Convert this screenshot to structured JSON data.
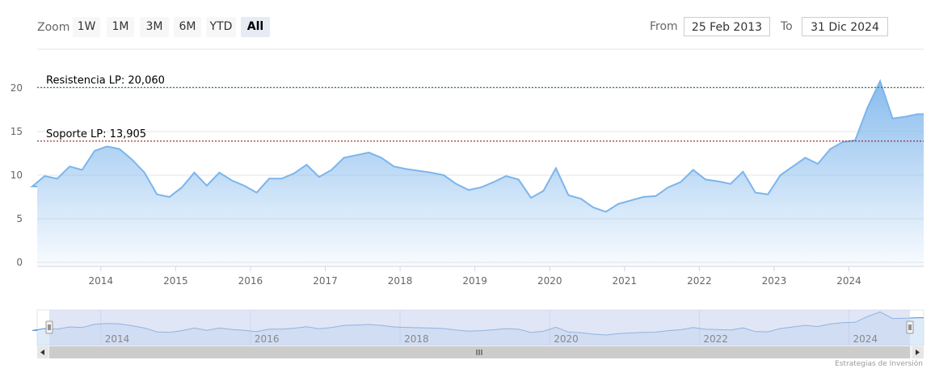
{
  "toolbar": {
    "zoom_label": "Zoom",
    "buttons": [
      "1W",
      "1M",
      "3M",
      "6M",
      "YTD",
      "All"
    ],
    "active": "All",
    "from_label": "From",
    "from_value": "25 Feb 2013",
    "to_label": "To",
    "to_value": "31 Dic 2024"
  },
  "credit": "Estrategias de Inversión",
  "colors": {
    "line": "#7cb5ec",
    "fill_top": "#7cb5ec",
    "resistance": "#2e8b2e",
    "support": "#9a1b1b",
    "navigator_mask": "#c6d2ec"
  },
  "chart_data": {
    "type": "area",
    "title": "",
    "xlabel": "",
    "ylabel": "",
    "ylim": [
      0,
      20
    ],
    "yticks": [
      0,
      5,
      10,
      15,
      20
    ],
    "xticks": [
      "2014",
      "2015",
      "2016",
      "2017",
      "2018",
      "2019",
      "2020",
      "2021",
      "2022",
      "2023",
      "2024"
    ],
    "navigator_ticks": [
      "2014",
      "2016",
      "2018",
      "2020",
      "2022",
      "2024"
    ],
    "x_range": [
      "2013-02-25",
      "2024-12-31"
    ],
    "grid": true,
    "plot_lines": [
      {
        "label": "Resistencia LP: 20,060",
        "value": 20.06,
        "style": "dotted"
      },
      {
        "label": "Soporte LP: 13,905",
        "value": 13.905,
        "style": "dotted"
      }
    ],
    "series": [
      {
        "x": [
          "2013-02",
          "2013-04",
          "2013-06",
          "2013-08",
          "2013-10",
          "2013-12",
          "2014-02",
          "2014-04",
          "2014-06",
          "2014-08",
          "2014-10",
          "2014-12",
          "2015-02",
          "2015-04",
          "2015-06",
          "2015-08",
          "2015-10",
          "2015-12",
          "2016-02",
          "2016-04",
          "2016-06",
          "2016-08",
          "2016-10",
          "2016-12",
          "2017-02",
          "2017-04",
          "2017-06",
          "2017-08",
          "2017-10",
          "2017-12",
          "2018-02",
          "2018-04",
          "2018-06",
          "2018-08",
          "2018-10",
          "2018-12",
          "2019-02",
          "2019-04",
          "2019-06",
          "2019-08",
          "2019-10",
          "2019-12",
          "2020-02",
          "2020-04",
          "2020-06",
          "2020-08",
          "2020-10",
          "2020-12",
          "2021-02",
          "2021-04",
          "2021-06",
          "2021-08",
          "2021-10",
          "2021-12",
          "2022-02",
          "2022-04",
          "2022-06",
          "2022-08",
          "2022-10",
          "2022-12",
          "2023-02",
          "2023-04",
          "2023-06",
          "2023-08",
          "2023-10",
          "2023-12",
          "2024-02",
          "2024-04",
          "2024-06",
          "2024-08",
          "2024-10",
          "2024-12"
        ],
        "y": [
          8.7,
          9.9,
          9.6,
          11.0,
          10.6,
          12.8,
          13.3,
          13.0,
          11.8,
          10.3,
          7.8,
          7.5,
          8.6,
          10.3,
          8.8,
          10.3,
          9.4,
          8.8,
          8.0,
          9.6,
          9.6,
          10.2,
          11.2,
          9.8,
          10.6,
          12.0,
          12.3,
          12.6,
          12.0,
          11.0,
          10.7,
          10.5,
          10.3,
          10.0,
          9.0,
          8.3,
          8.6,
          9.2,
          9.9,
          9.5,
          7.4,
          8.2,
          10.8,
          7.7,
          7.3,
          6.3,
          5.8,
          6.7,
          7.1,
          7.5,
          7.6,
          8.6,
          9.2,
          10.6,
          9.5,
          9.3,
          9.0,
          10.4,
          8.0,
          7.8,
          10.0,
          11.0,
          12.0,
          11.3,
          13.0,
          13.8,
          14.0,
          17.8,
          20.8,
          16.5,
          16.7,
          17.0
        ]
      }
    ]
  }
}
